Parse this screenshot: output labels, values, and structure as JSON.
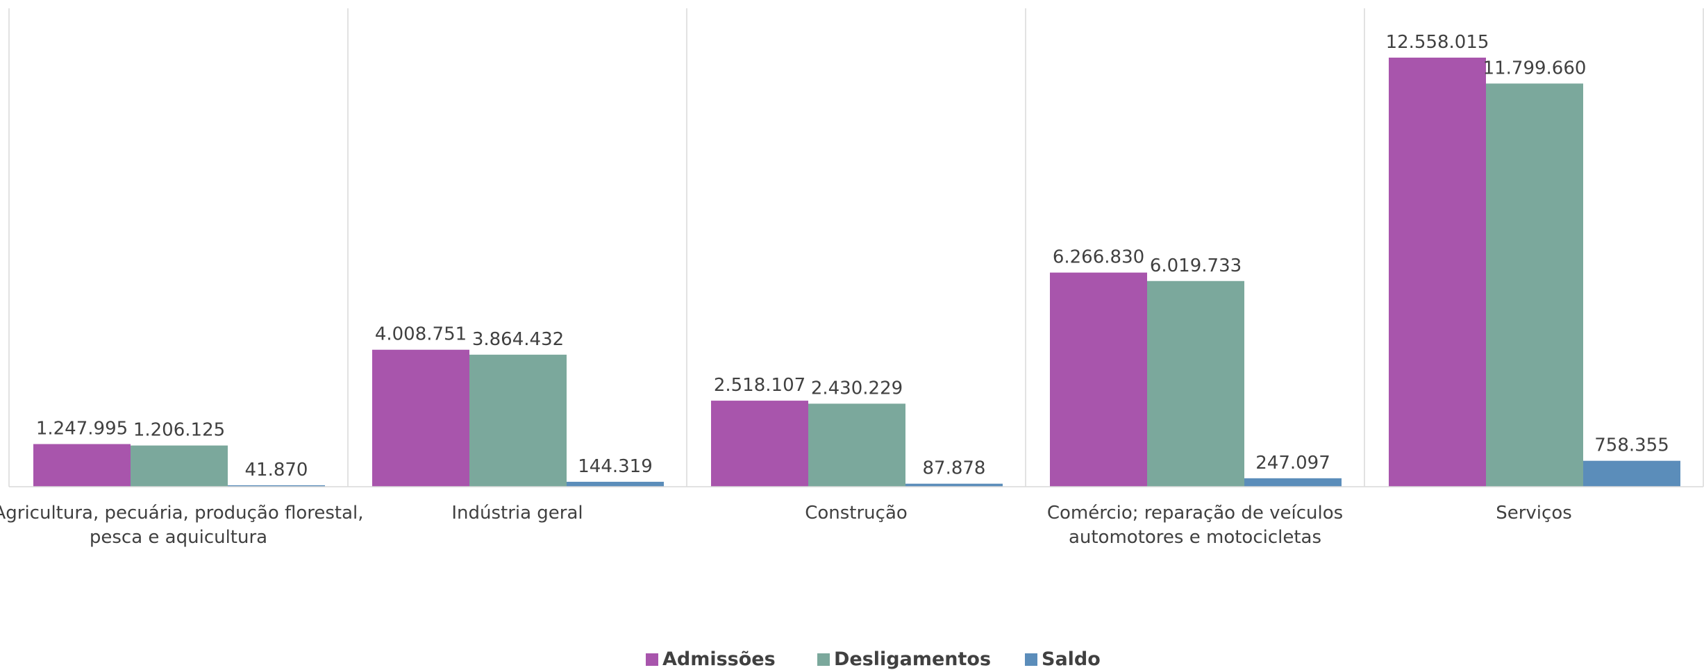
{
  "chart_data": {
    "type": "bar",
    "categories": [
      [
        "Agricultura, pecuária, produção florestal,",
        "pesca e aquicultura"
      ],
      [
        "Indústria geral"
      ],
      [
        "Construção"
      ],
      [
        "Comércio; reparação de veículos",
        "automotores e motocicletas"
      ],
      [
        "Serviços"
      ]
    ],
    "series": [
      {
        "name": "Admissões",
        "color": "#A855AC",
        "values": [
          1247995,
          4008751,
          2518107,
          6266830,
          12558015
        ],
        "labels": [
          "1.247.995",
          "4.008.751",
          "2.518.107",
          "6.266.830",
          "12.558.015"
        ]
      },
      {
        "name": "Desligamentos",
        "color": "#7BA89C",
        "values": [
          1206125,
          3864432,
          2430229,
          6019733,
          11799660
        ],
        "labels": [
          "1.206.125",
          "3.864.432",
          "2.430.229",
          "6.019.733",
          "11.799.660"
        ]
      },
      {
        "name": "Saldo",
        "color": "#5B8DBA",
        "values": [
          41870,
          144319,
          87878,
          247097,
          758355
        ],
        "labels": [
          "41.870",
          "144.319",
          "87.878",
          "247.097",
          "758.355"
        ]
      }
    ],
    "title": "",
    "xlabel": "",
    "ylabel": "",
    "ylim": [
      0,
      14000000
    ],
    "grid": false,
    "legend": "bottom-center",
    "category_separators": true
  }
}
